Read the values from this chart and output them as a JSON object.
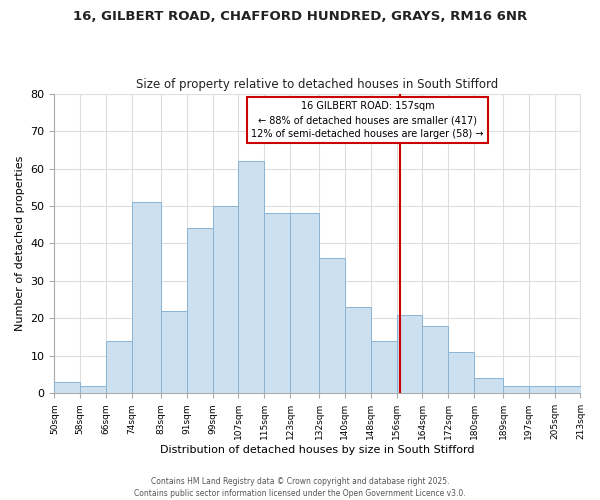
{
  "title1": "16, GILBERT ROAD, CHAFFORD HUNDRED, GRAYS, RM16 6NR",
  "title2": "Size of property relative to detached houses in South Stifford",
  "xlabel": "Distribution of detached houses by size in South Stifford",
  "ylabel": "Number of detached properties",
  "bin_edges": [
    50,
    58,
    66,
    74,
    83,
    91,
    99,
    107,
    115,
    123,
    132,
    140,
    148,
    156,
    164,
    172,
    180,
    189,
    197,
    205,
    213
  ],
  "bar_heights": [
    3,
    2,
    14,
    51,
    22,
    44,
    50,
    62,
    48,
    48,
    36,
    23,
    14,
    21,
    18,
    11,
    4,
    2,
    2,
    2
  ],
  "bar_color": "#cce0f0",
  "bar_edge_color": "#8ab4d4",
  "property_size": 157,
  "vline_color": "#cc0000",
  "annotation_title": "16 GILBERT ROAD: 157sqm",
  "annotation_line1": "← 88% of detached houses are smaller (417)",
  "annotation_line2": "12% of semi-detached houses are larger (58) →",
  "ylim": [
    0,
    80
  ],
  "tick_labels": [
    "50sqm",
    "58sqm",
    "66sqm",
    "74sqm",
    "83sqm",
    "91sqm",
    "99sqm",
    "107sqm",
    "115sqm",
    "123sqm",
    "132sqm",
    "140sqm",
    "148sqm",
    "156sqm",
    "164sqm",
    "172sqm",
    "180sqm",
    "189sqm",
    "197sqm",
    "205sqm",
    "213sqm"
  ],
  "footnote1": "Contains HM Land Registry data © Crown copyright and database right 2025.",
  "footnote2": "Contains public sector information licensed under the Open Government Licence v3.0.",
  "bg_color": "#ffffff",
  "grid_color": "#dddddd",
  "yticks": [
    0,
    10,
    20,
    30,
    40,
    50,
    60,
    70,
    80
  ]
}
